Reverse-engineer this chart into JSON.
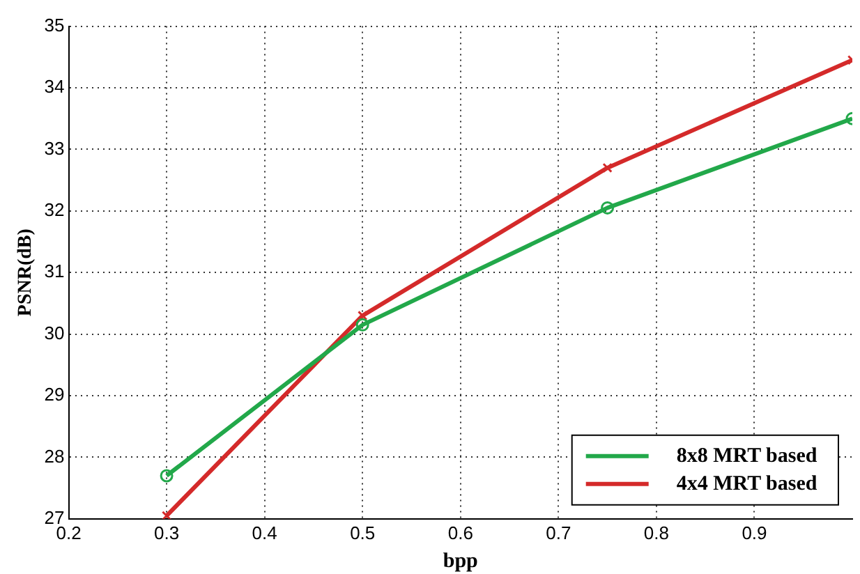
{
  "chart_data": {
    "type": "line",
    "xlabel": "bpp",
    "ylabel": "PSNR(dB)",
    "x": [
      0.3,
      0.5,
      0.75,
      1.0
    ],
    "xlim": [
      0.2,
      1.0
    ],
    "xticks": [
      0.2,
      0.3,
      0.4,
      0.5,
      0.6,
      0.7,
      0.8,
      0.9
    ],
    "ylim": [
      27,
      35
    ],
    "yticks": [
      27,
      28,
      29,
      30,
      31,
      32,
      33,
      34,
      35
    ],
    "grid": true,
    "legend": "bottom right",
    "series": [
      {
        "name": "8x8 MRT based",
        "color": "#22a84a",
        "marker": "circle",
        "values": [
          27.7,
          30.15,
          32.05,
          33.5
        ]
      },
      {
        "name": "4x4 MRT based",
        "color": "#d42a2a",
        "marker": "cross",
        "values": [
          27.05,
          30.3,
          32.7,
          34.45
        ]
      }
    ]
  }
}
